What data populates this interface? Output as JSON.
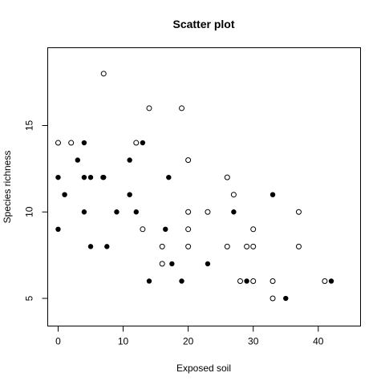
{
  "chart_data": {
    "type": "scatter",
    "title": "Scatter plot",
    "xlabel": "Exposed soil",
    "ylabel": "Species richness",
    "xlim": [
      -1.6,
      46.5
    ],
    "ylim": [
      3.4,
      19.5
    ],
    "x_ticks": [
      0,
      10,
      20,
      30,
      40
    ],
    "y_ticks": [
      5,
      10,
      15
    ],
    "grid": false,
    "legend": "none",
    "series": [
      {
        "marker": "open-circle",
        "points": [
          [
            0,
            14
          ],
          [
            2,
            14
          ],
          [
            7,
            18
          ],
          [
            12,
            14
          ],
          [
            13,
            9
          ],
          [
            14,
            16
          ],
          [
            16,
            8
          ],
          [
            16,
            7
          ],
          [
            19,
            16
          ],
          [
            20,
            13
          ],
          [
            20,
            10
          ],
          [
            20,
            9
          ],
          [
            20,
            8
          ],
          [
            23,
            10
          ],
          [
            26,
            12
          ],
          [
            26,
            8
          ],
          [
            27,
            11
          ],
          [
            28,
            6
          ],
          [
            29,
            8
          ],
          [
            30,
            9
          ],
          [
            30,
            8
          ],
          [
            30,
            6
          ],
          [
            33,
            6
          ],
          [
            33,
            5
          ],
          [
            37,
            10
          ],
          [
            37,
            8
          ],
          [
            41,
            6
          ]
        ]
      },
      {
        "marker": "filled-circle",
        "points": [
          [
            0,
            12
          ],
          [
            0,
            9
          ],
          [
            1,
            11
          ],
          [
            3,
            13
          ],
          [
            4,
            14
          ],
          [
            4,
            12
          ],
          [
            4,
            10
          ],
          [
            5,
            12
          ],
          [
            5,
            8
          ],
          [
            6.9,
            12
          ],
          [
            7,
            12
          ],
          [
            7.5,
            8
          ],
          [
            9,
            10
          ],
          [
            11,
            13
          ],
          [
            11,
            11
          ],
          [
            12,
            10
          ],
          [
            13,
            14
          ],
          [
            14,
            6
          ],
          [
            16.5,
            9
          ],
          [
            17,
            12
          ],
          [
            17.5,
            7
          ],
          [
            19,
            6
          ],
          [
            23,
            7
          ],
          [
            27,
            10
          ],
          [
            29,
            6
          ],
          [
            33,
            11
          ],
          [
            35,
            5
          ],
          [
            42,
            6
          ]
        ]
      }
    ]
  }
}
